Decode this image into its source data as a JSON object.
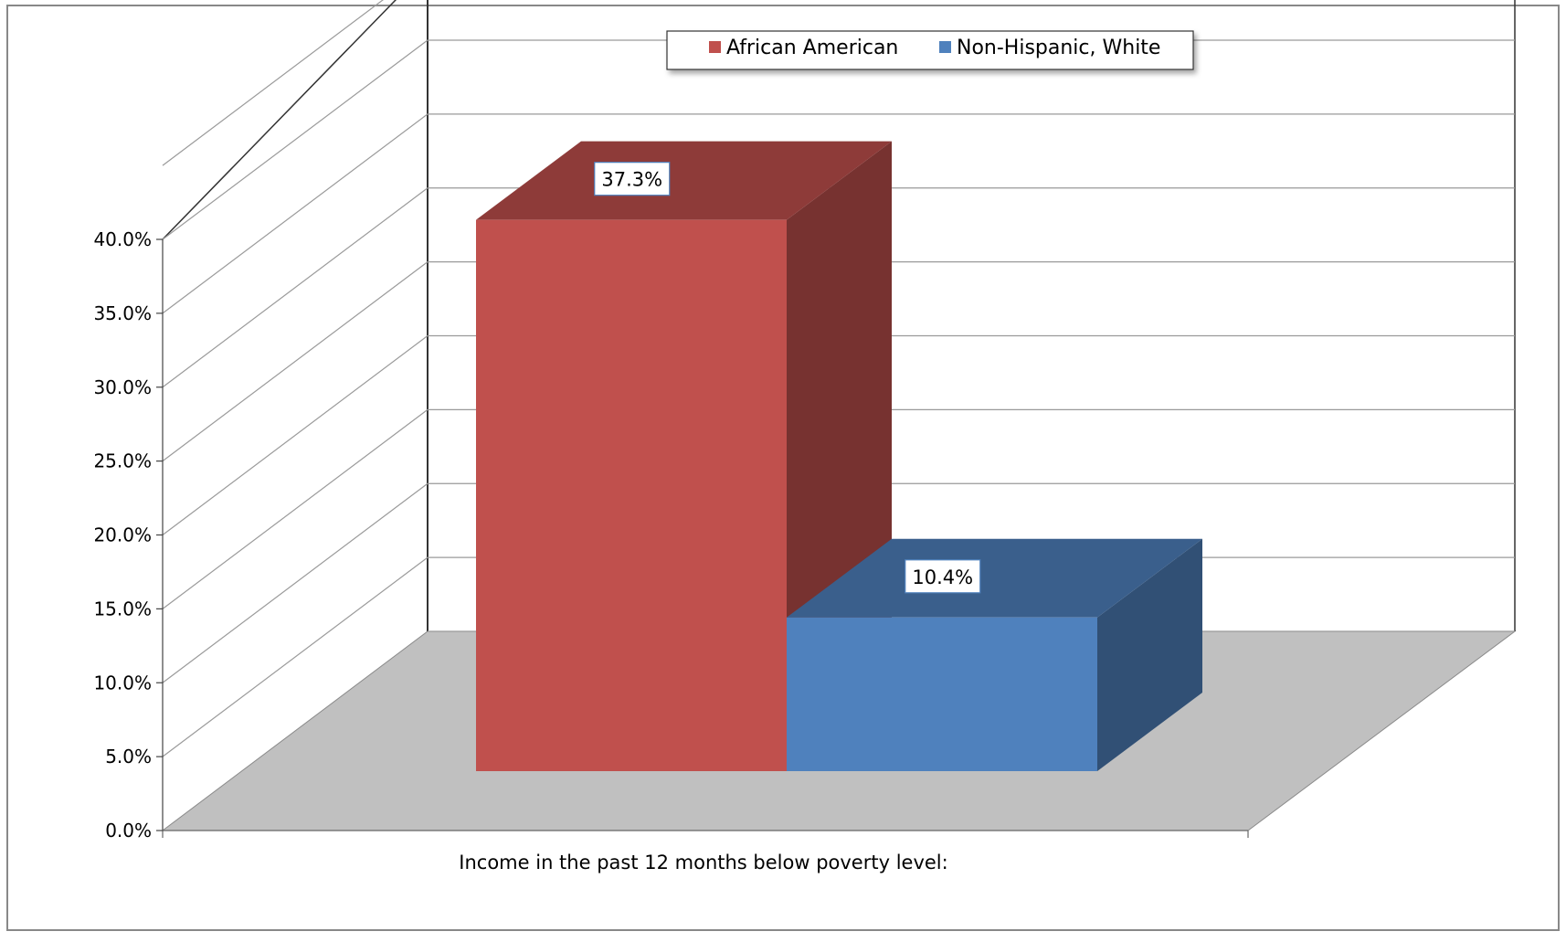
{
  "chart_data": {
    "type": "bar",
    "categories": [
      "Income in the past 12 months below poverty level:"
    ],
    "series": [
      {
        "name": "African American",
        "values": [
          37.3
        ],
        "color": "#c0504d",
        "label": "37.3%"
      },
      {
        "name": "Non-Hispanic, White",
        "values": [
          10.4
        ],
        "color": "#4f81bd",
        "label": "10.4%"
      }
    ],
    "ylim": [
      0,
      40
    ],
    "yticks": [
      "0.0%",
      "5.0%",
      "10.0%",
      "15.0%",
      "20.0%",
      "25.0%",
      "30.0%",
      "35.0%",
      "40.0%"
    ],
    "ytick_values": [
      0,
      5,
      10,
      15,
      20,
      25,
      30,
      35,
      40
    ],
    "grid": true,
    "legend": "top-center",
    "projection": "3d"
  }
}
